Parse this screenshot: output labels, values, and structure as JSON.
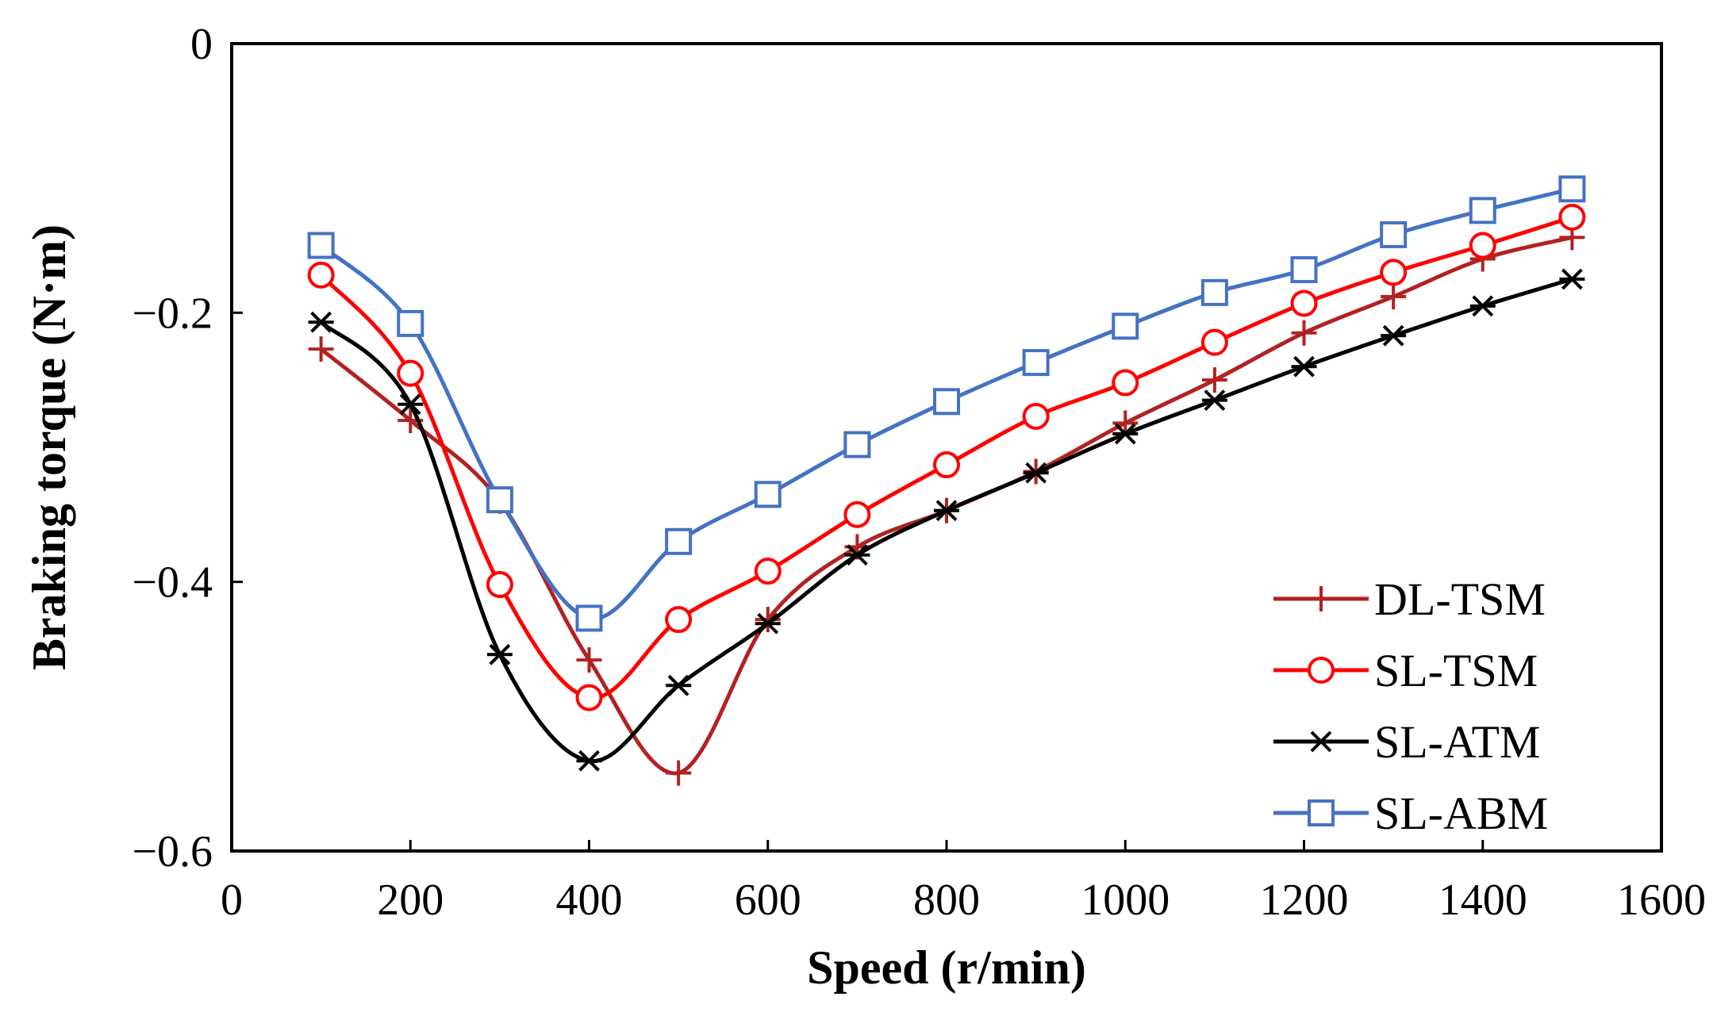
{
  "chart_data": {
    "type": "line",
    "title": "",
    "xlabel": "Speed (r/min)",
    "ylabel": "Braking torque (N·m)",
    "xlim": [
      0,
      1600
    ],
    "ylim": [
      -0.6,
      0
    ],
    "xticks": [
      0,
      200,
      400,
      600,
      800,
      1000,
      1200,
      1400,
      1600
    ],
    "xtick_labels": [
      "0",
      "200",
      "400",
      "600",
      "800",
      "1000",
      "1200",
      "1400",
      "1600"
    ],
    "yticks": [
      0,
      -0.2,
      -0.4,
      -0.6
    ],
    "ytick_labels": [
      "0",
      "−0.2",
      "−0.4",
      "−0.6"
    ],
    "grid": false,
    "legend_position": "bottom-right",
    "x": [
      100,
      200,
      300,
      400,
      500,
      600,
      700,
      800,
      900,
      1000,
      1100,
      1200,
      1300,
      1400,
      1500
    ],
    "series": [
      {
        "name": "DL-TSM",
        "color": "#b22222",
        "marker": "plus",
        "values": [
          -0.227,
          -0.28,
          -0.34,
          -0.458,
          -0.542,
          -0.428,
          -0.374,
          -0.347,
          -0.318,
          -0.282,
          -0.25,
          -0.215,
          -0.188,
          -0.16,
          -0.144
        ]
      },
      {
        "name": "SL-TSM",
        "color": "#ff0000",
        "marker": "circle",
        "values": [
          -0.172,
          -0.245,
          -0.402,
          -0.486,
          -0.428,
          -0.392,
          -0.35,
          -0.313,
          -0.277,
          -0.252,
          -0.222,
          -0.193,
          -0.17,
          -0.15,
          -0.129
        ]
      },
      {
        "name": "SL-ATM",
        "color": "#000000",
        "marker": "asterisk",
        "values": [
          -0.207,
          -0.268,
          -0.454,
          -0.533,
          -0.477,
          -0.431,
          -0.38,
          -0.347,
          -0.319,
          -0.29,
          -0.265,
          -0.24,
          -0.217,
          -0.195,
          -0.175
        ]
      },
      {
        "name": "SL-ABM",
        "color": "#4472c4",
        "marker": "square",
        "values": [
          -0.15,
          -0.208,
          -0.339,
          -0.427,
          -0.37,
          -0.335,
          -0.298,
          -0.266,
          -0.237,
          -0.21,
          -0.185,
          -0.168,
          -0.142,
          -0.124,
          -0.108
        ]
      }
    ]
  }
}
